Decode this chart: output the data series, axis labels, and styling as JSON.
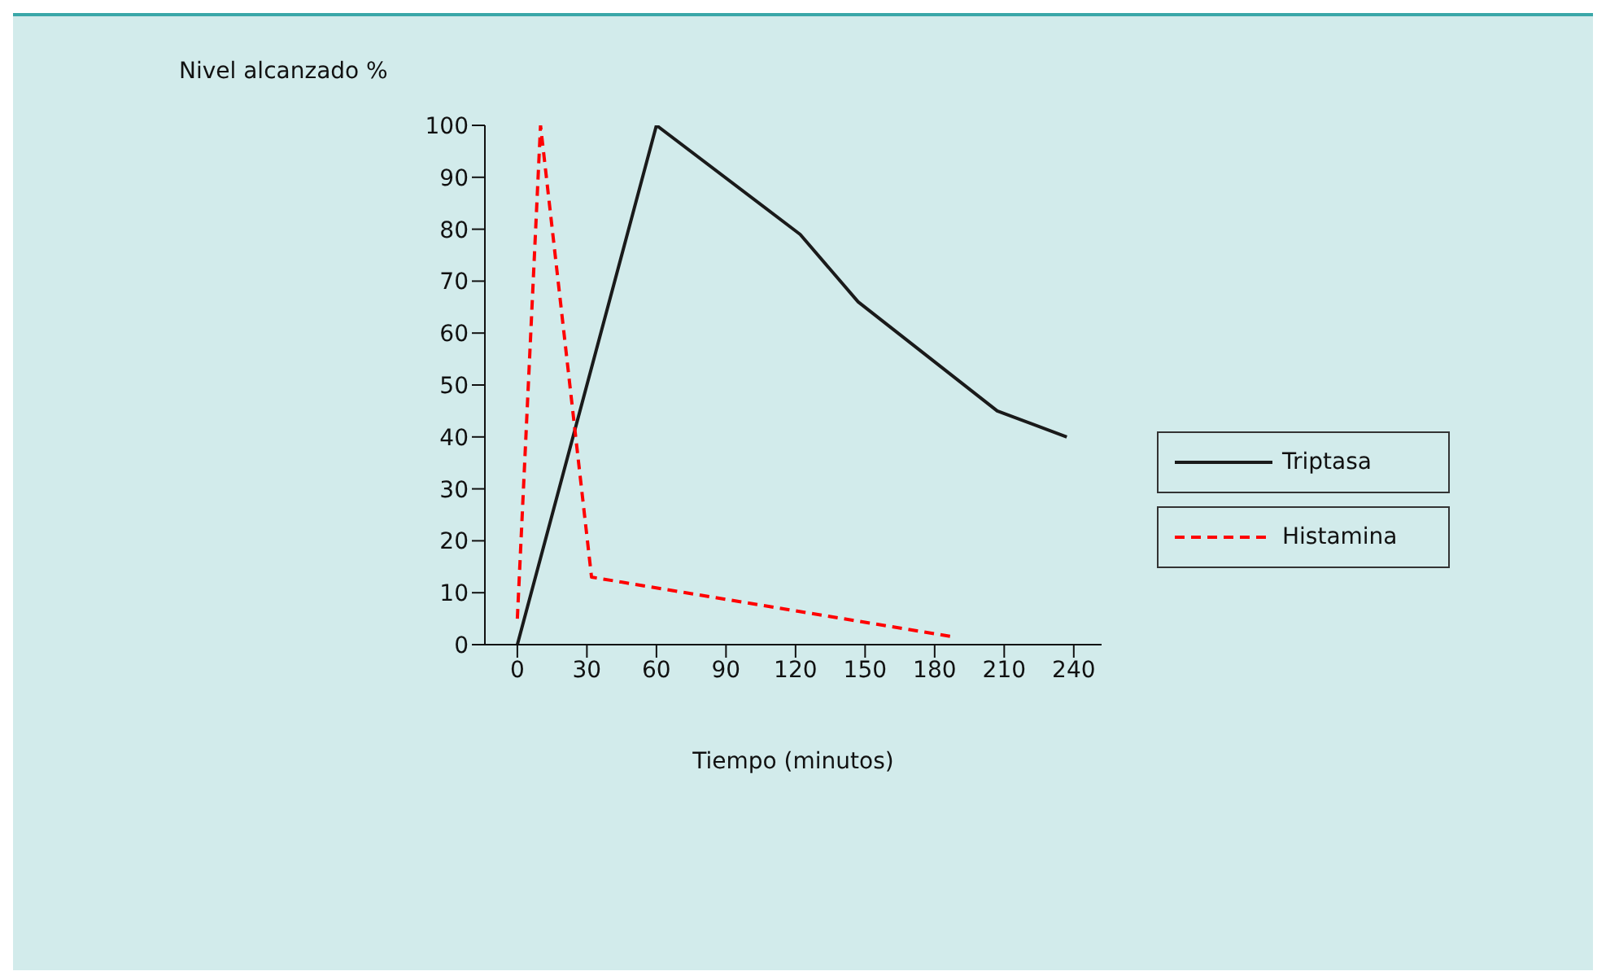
{
  "chart_data": {
    "type": "line",
    "xlabel": "Tiempo (minutos)",
    "ylabel": "Nivel alcanzado %",
    "xlim": [
      -14,
      252
    ],
    "xticks": [
      0,
      30,
      60,
      90,
      120,
      150,
      180,
      210,
      240
    ],
    "ylim": [
      0,
      100
    ],
    "yticks": [
      0,
      10,
      20,
      30,
      40,
      50,
      60,
      70,
      80,
      90,
      100
    ],
    "series": [
      {
        "name": "Triptasa",
        "color": "#1a1a1a",
        "line_style": "solid",
        "x": [
          0,
          60,
          122,
          147,
          207,
          237
        ],
        "values": [
          0,
          100,
          79,
          66,
          45,
          40
        ]
      },
      {
        "name": "Histamina",
        "color": "#ff0000",
        "line_style": "dashed",
        "x": [
          0,
          10,
          32,
          188
        ],
        "values": [
          5,
          100,
          13,
          1.5
        ]
      }
    ],
    "legend": "right",
    "marker": "none"
  }
}
